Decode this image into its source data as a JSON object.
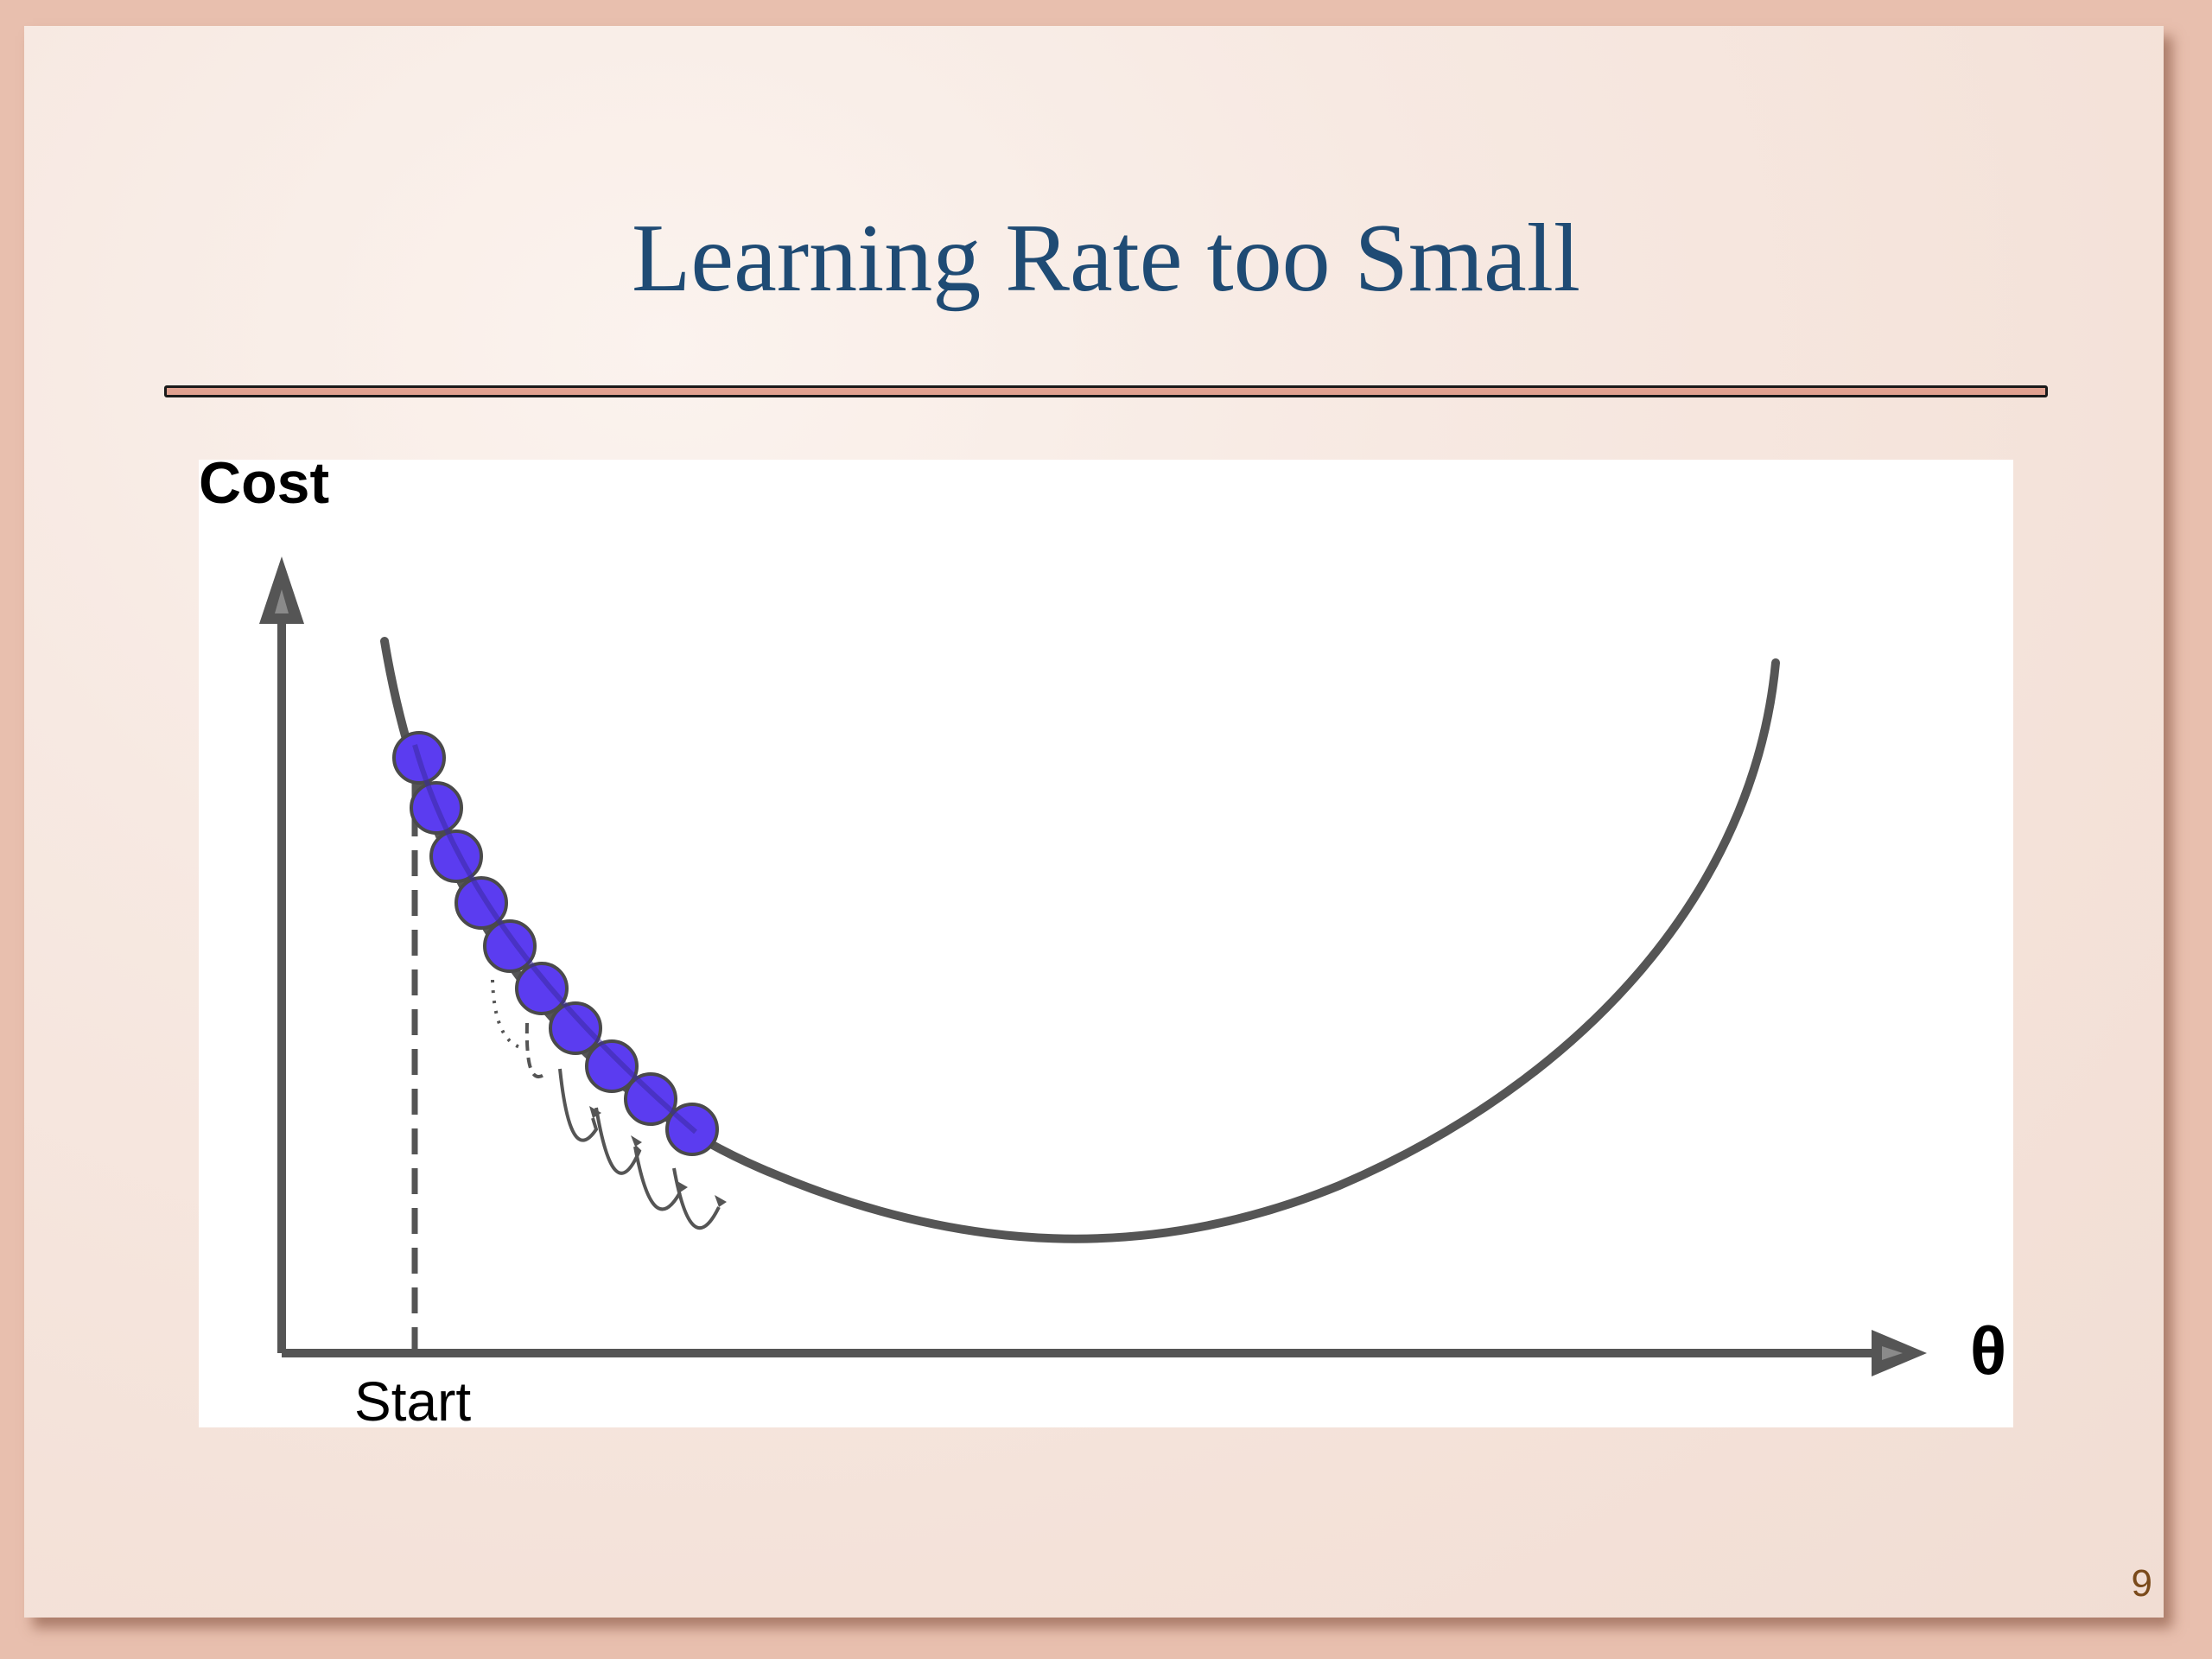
{
  "slide": {
    "title": "Learning Rate too Small",
    "page_number": "9"
  },
  "diagram": {
    "y_axis_label": "Cost",
    "x_axis_label": "θ",
    "start_label": "Start",
    "step_count": 10,
    "colors": {
      "curve": "#555555",
      "ball_fill": "#5b3cf0",
      "ball_stroke": "#4a4a4a",
      "axis": "#555555",
      "title": "#1f4b74",
      "rule": "#e0a08f"
    }
  }
}
